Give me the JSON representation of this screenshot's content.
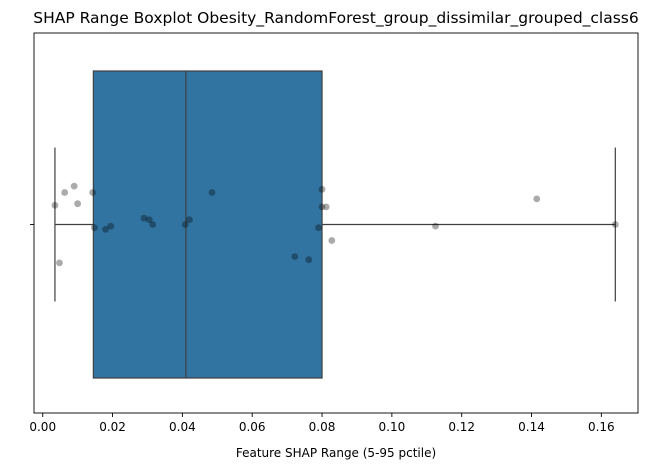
{
  "chart_data": {
    "type": "boxplot",
    "title": "SHAP Range Boxplot Obesity_RandomForest_group_dissimilar_grouped_class6",
    "xlabel": "Feature SHAP Range (5-95 pctile)",
    "ylabel": "",
    "xlim": [
      -0.0025,
      0.1705
    ],
    "xticks": [
      0.0,
      0.02,
      0.04,
      0.06,
      0.08,
      0.1,
      0.12,
      0.14,
      0.16
    ],
    "xtick_labels": [
      "0.00",
      "0.02",
      "0.04",
      "0.06",
      "0.08",
      "0.10",
      "0.12",
      "0.14",
      "0.16"
    ],
    "grid": false,
    "box": {
      "whisker_low": 0.0035,
      "q1": 0.0145,
      "median": 0.041,
      "q3": 0.08,
      "whisker_high": 0.164,
      "fill": "#3274a1",
      "edge": "#3f3f3f"
    },
    "points": [
      {
        "x": 0.0035,
        "jitter": 0.12
      },
      {
        "x": 0.0048,
        "jitter": -0.24
      },
      {
        "x": 0.0063,
        "jitter": 0.2
      },
      {
        "x": 0.009,
        "jitter": 0.24
      },
      {
        "x": 0.01,
        "jitter": 0.13
      },
      {
        "x": 0.0143,
        "jitter": 0.2
      },
      {
        "x": 0.0148,
        "jitter": -0.02
      },
      {
        "x": 0.018,
        "jitter": -0.03
      },
      {
        "x": 0.0195,
        "jitter": -0.01
      },
      {
        "x": 0.029,
        "jitter": 0.04
      },
      {
        "x": 0.0305,
        "jitter": 0.03
      },
      {
        "x": 0.0315,
        "jitter": 0.0
      },
      {
        "x": 0.0408,
        "jitter": 0.0
      },
      {
        "x": 0.042,
        "jitter": 0.03
      },
      {
        "x": 0.0485,
        "jitter": 0.2
      },
      {
        "x": 0.0722,
        "jitter": -0.2
      },
      {
        "x": 0.0762,
        "jitter": -0.22
      },
      {
        "x": 0.079,
        "jitter": -0.02
      },
      {
        "x": 0.08,
        "jitter": 0.22
      },
      {
        "x": 0.08,
        "jitter": 0.11
      },
      {
        "x": 0.0812,
        "jitter": 0.11
      },
      {
        "x": 0.0828,
        "jitter": -0.1
      },
      {
        "x": 0.1125,
        "jitter": -0.01
      },
      {
        "x": 0.1415,
        "jitter": 0.16
      },
      {
        "x": 0.164,
        "jitter": 0.0
      }
    ],
    "point_color": "#000000",
    "point_opacity": 0.33
  }
}
